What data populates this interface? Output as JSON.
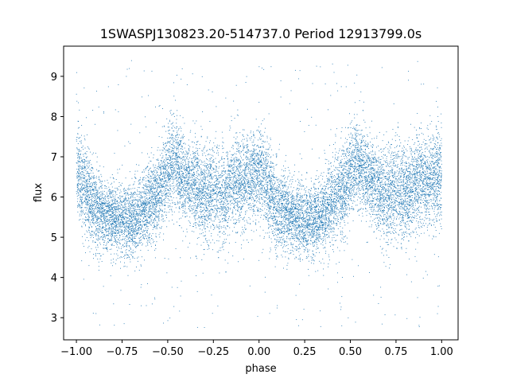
{
  "chart_data": {
    "type": "scatter",
    "title": "1SWASPJ130823.20-514737.0 Period 12913799.0s",
    "xlabel": "phase",
    "ylabel": "flux",
    "xlim": [
      -1.07,
      1.09
    ],
    "ylim": [
      2.45,
      9.75
    ],
    "x_ticks": [
      -1.0,
      -0.75,
      -0.5,
      -0.25,
      0.0,
      0.25,
      0.5,
      0.75,
      1.0
    ],
    "x_tick_labels": [
      "−1.00",
      "−0.75",
      "−0.50",
      "−0.25",
      "0.00",
      "0.25",
      "0.50",
      "0.75",
      "1.00"
    ],
    "y_ticks": [
      3,
      4,
      5,
      6,
      7,
      8,
      9
    ],
    "y_tick_labels": [
      "3",
      "4",
      "5",
      "6",
      "7",
      "8",
      "9"
    ],
    "grid": false,
    "series_color": "#1f77b4",
    "x_range": [
      -1.0,
      1.0
    ],
    "profile": {
      "phase": [
        0.0,
        0.03,
        0.06,
        0.1,
        0.15,
        0.2,
        0.25,
        0.3,
        0.35,
        0.4,
        0.45,
        0.5,
        0.53,
        0.56,
        0.6,
        0.65,
        0.7,
        0.75,
        0.8,
        0.85,
        0.9,
        0.95,
        1.0
      ],
      "center": [
        6.6,
        6.4,
        6.1,
        5.7,
        5.6,
        5.5,
        5.4,
        5.4,
        5.6,
        5.9,
        6.1,
        6.6,
        6.9,
        6.6,
        6.4,
        6.3,
        6.0,
        6.2,
        6.0,
        6.3,
        6.4,
        6.4,
        6.6
      ],
      "spread": [
        0.6,
        0.55,
        0.55,
        0.5,
        0.45,
        0.45,
        0.45,
        0.45,
        0.45,
        0.5,
        0.55,
        0.55,
        0.55,
        0.55,
        0.5,
        0.55,
        0.6,
        0.6,
        0.6,
        0.55,
        0.55,
        0.55,
        0.6
      ]
    },
    "n_points": 14000
  }
}
